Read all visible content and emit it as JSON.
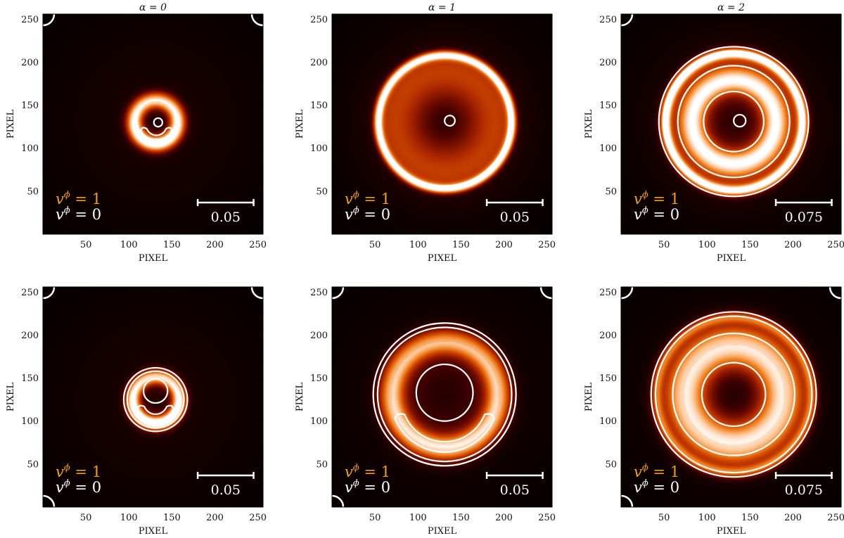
{
  "figure": {
    "xlabel": "PIXEL",
    "ylabel": "PIXEL",
    "xticks": [
      50,
      100,
      150,
      200,
      250
    ],
    "yticks": [
      50,
      100,
      150,
      200,
      250
    ],
    "axis_range": [
      0,
      256
    ],
    "colormap": [
      "#000000",
      "#3d0000",
      "#7a0f00",
      "#b02a00",
      "#d95400",
      "#f38a2e",
      "#fcc89a",
      "#ffffff"
    ],
    "contour_color": "#ffffff",
    "legend": [
      {
        "label": "v^ϕ = 1",
        "symbol": "v",
        "sup": "ϕ",
        "rest": " = 1",
        "color": "#f0a020"
      },
      {
        "label": "v^ϕ = 0",
        "symbol": "v",
        "sup": "ϕ",
        "rest": " = 0",
        "color": "#ffffff"
      }
    ]
  },
  "chart_data": [
    {
      "type": "heatmap",
      "row": 1,
      "col": 1,
      "title": "α = 0",
      "scalebar_label": "0.05",
      "scalebar_pixels": [
        180,
        245
      ],
      "center": [
        131,
        131
      ],
      "rings": [
        {
          "r": 25,
          "w": 9,
          "peak": 1.0,
          "asym": 0.45
        }
      ],
      "glow": 0.0,
      "contours": [
        {
          "type": "circle",
          "cx": 132,
          "cy": 133,
          "r": 23
        },
        {
          "type": "circle",
          "cx": 134,
          "cy": 130,
          "r": 5
        },
        {
          "type": "crescent",
          "cx": 132,
          "cy": 127,
          "r": 19,
          "thick": 7
        }
      ],
      "corner_arcs": [
        "tl",
        "tr"
      ]
    },
    {
      "type": "heatmap",
      "row": 1,
      "col": 2,
      "title": "α = 1",
      "scalebar_label": "0.05",
      "scalebar_pixels": [
        180,
        245
      ],
      "center": [
        131,
        131
      ],
      "rings": [
        {
          "r": 78,
          "w": 5,
          "peak": 1.0,
          "asym": 0.05
        }
      ],
      "glow": 0.42,
      "contours": [
        {
          "type": "circle",
          "cx": 131,
          "cy": 131,
          "r": 75
        },
        {
          "type": "circle",
          "cx": 137,
          "cy": 132,
          "r": 6
        }
      ],
      "corner_arcs": []
    },
    {
      "type": "heatmap",
      "row": 1,
      "col": 3,
      "title": "α = 2",
      "scalebar_label": "0.075",
      "scalebar_pixels": [
        180,
        245
      ],
      "center": [
        131,
        131
      ],
      "rings": [
        {
          "r": 80,
          "w": 6,
          "peak": 1.0,
          "asym": 0.0
        },
        {
          "r": 48,
          "w": 14,
          "peak": 0.72,
          "asym": 0.05
        }
      ],
      "glow": 0.3,
      "contours": [
        {
          "type": "circle",
          "cx": 131,
          "cy": 131,
          "r": 87
        },
        {
          "type": "circle",
          "cx": 131,
          "cy": 131,
          "r": 82
        },
        {
          "type": "circle",
          "cx": 131,
          "cy": 131,
          "r": 65
        },
        {
          "type": "circle",
          "cx": 131,
          "cy": 131,
          "r": 35
        },
        {
          "type": "circle",
          "cx": 138,
          "cy": 132,
          "r": 7
        }
      ],
      "corner_arcs": [
        "tl"
      ]
    },
    {
      "type": "heatmap",
      "row": 2,
      "col": 1,
      "title": "",
      "scalebar_label": "0.05",
      "scalebar_pixels": [
        180,
        245
      ],
      "center": [
        131,
        125
      ],
      "rings": [
        {
          "r": 27,
          "w": 8,
          "peak": 1.0,
          "asym": 0.55
        }
      ],
      "glow": 0.05,
      "contours": [
        {
          "type": "circle",
          "cx": 131,
          "cy": 125,
          "r": 37
        },
        {
          "type": "circle",
          "cx": 131,
          "cy": 125,
          "r": 33
        },
        {
          "type": "circle",
          "cx": 131,
          "cy": 135,
          "r": 14
        },
        {
          "type": "crescent",
          "cx": 131,
          "cy": 122,
          "r": 22,
          "thick": 8
        }
      ],
      "corner_arcs": [
        "tl",
        "tr",
        "bl"
      ]
    },
    {
      "type": "heatmap",
      "row": 2,
      "col": 2,
      "title": "",
      "scalebar_label": "0.05",
      "scalebar_pixels": [
        180,
        245
      ],
      "center": [
        131,
        131
      ],
      "rings": [
        {
          "r": 62,
          "w": 14,
          "peak": 0.8,
          "asym": 0.35
        }
      ],
      "glow": 0.1,
      "contours": [
        {
          "type": "circle",
          "cx": 131,
          "cy": 131,
          "r": 83
        },
        {
          "type": "circle",
          "cx": 131,
          "cy": 131,
          "r": 78
        },
        {
          "type": "circle",
          "cx": 131,
          "cy": 133,
          "r": 33
        },
        {
          "type": "crescent",
          "cx": 131,
          "cy": 126,
          "r": 62,
          "thick": 12
        }
      ],
      "corner_arcs": [
        "tl",
        "tr",
        "bl"
      ]
    },
    {
      "type": "heatmap",
      "row": 2,
      "col": 3,
      "title": "",
      "scalebar_label": "0.075",
      "scalebar_pixels": [
        180,
        245
      ],
      "center": [
        131,
        131
      ],
      "rings": [
        {
          "r": 58,
          "w": 24,
          "peak": 0.85,
          "asym": 0.05
        },
        {
          "r": 90,
          "w": 6,
          "peak": 0.5,
          "asym": 0.1
        }
      ],
      "glow": 0.1,
      "contours": [
        {
          "type": "circle",
          "cx": 131,
          "cy": 131,
          "r": 96
        },
        {
          "type": "circle",
          "cx": 131,
          "cy": 131,
          "r": 91
        },
        {
          "type": "circle",
          "cx": 131,
          "cy": 131,
          "r": 71
        },
        {
          "type": "circle",
          "cx": 131,
          "cy": 131,
          "r": 37
        }
      ],
      "corner_arcs": [
        "tl",
        "tr",
        "bl"
      ]
    }
  ]
}
